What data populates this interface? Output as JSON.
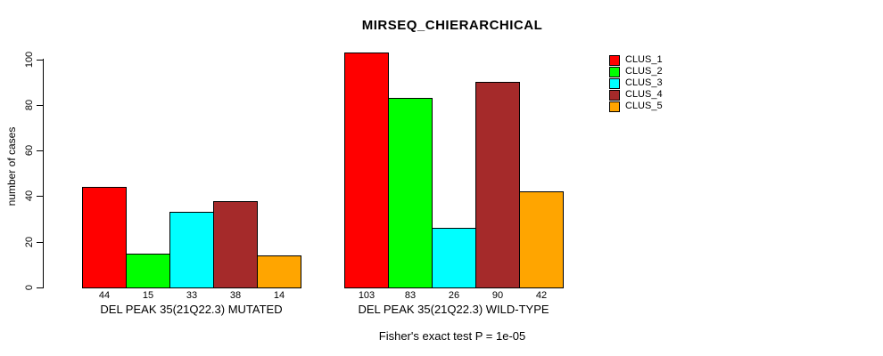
{
  "title": "MIRSEQ_CHIERARCHICAL",
  "footer": "Fisher's exact test P = 1e-05",
  "y_axis": {
    "label": "number of cases",
    "tick_labels": [
      "0",
      "20",
      "40",
      "60",
      "80",
      "100"
    ]
  },
  "legend": {
    "items": [
      {
        "label": "CLUS_1",
        "color": "#FF0000"
      },
      {
        "label": "CLUS_2",
        "color": "#00FF00"
      },
      {
        "label": "CLUS_3",
        "color": "#00FFFF"
      },
      {
        "label": "CLUS_4",
        "color": "#A52A2A"
      },
      {
        "label": "CLUS_5",
        "color": "#FFA500"
      }
    ]
  },
  "chart_data": {
    "type": "bar",
    "title": "MIRSEQ_CHIERARCHICAL",
    "xlabel": "",
    "ylabel": "number of cases",
    "ylim": [
      0,
      100
    ],
    "yticks": [
      0,
      20,
      40,
      60,
      80,
      100
    ],
    "grid": false,
    "legend_position": "right",
    "bar_value_labels_shown": true,
    "categories": [
      "DEL PEAK 35(21Q22.3) MUTATED",
      "DEL PEAK 35(21Q22.3) WILD-TYPE"
    ],
    "series": [
      {
        "name": "CLUS_1",
        "color": "#FF0000",
        "values": [
          44,
          103
        ]
      },
      {
        "name": "CLUS_2",
        "color": "#00FF00",
        "values": [
          15,
          83
        ]
      },
      {
        "name": "CLUS_3",
        "color": "#00FFFF",
        "values": [
          33,
          26
        ]
      },
      {
        "name": "CLUS_4",
        "color": "#A52A2A",
        "values": [
          38,
          90
        ]
      },
      {
        "name": "CLUS_5",
        "color": "#FFA500",
        "values": [
          14,
          42
        ]
      }
    ],
    "annotation": "Fisher's exact test P = 1e-05"
  }
}
